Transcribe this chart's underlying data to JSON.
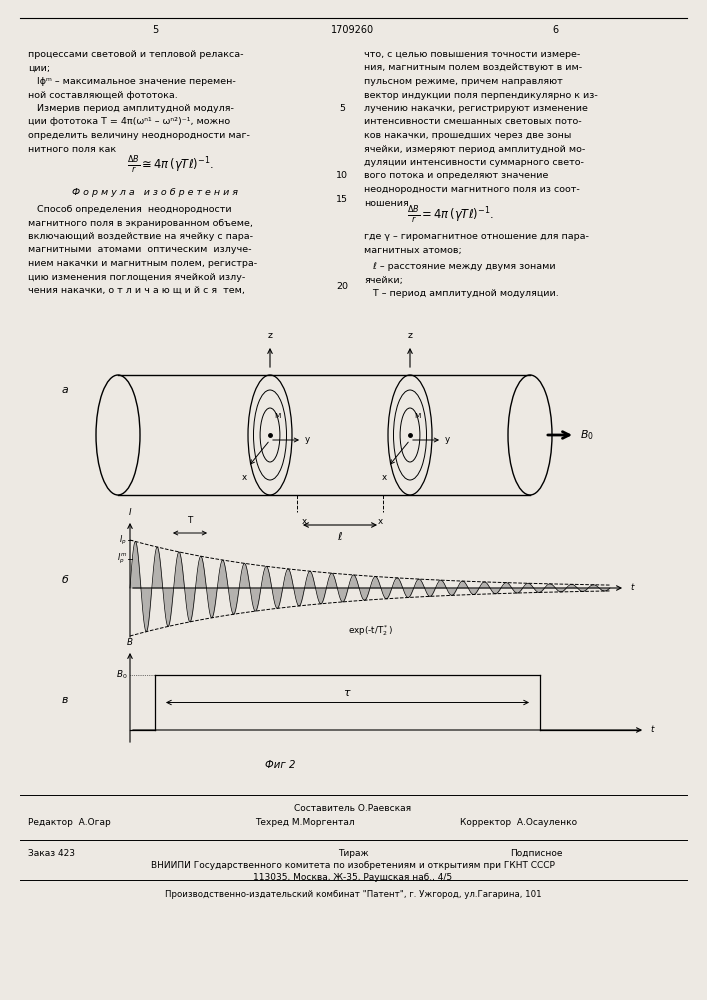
{
  "bg_color": "#ede9e3",
  "page_width": 7.07,
  "page_height": 10.0,
  "header_num_left": "5",
  "header_title": "1709260",
  "header_num_right": "6",
  "left_col_lines": [
    "процессами световой и тепловой релакса-",
    "ции;",
    "   Iϕᵐ – максимальное значение перемен-",
    "ной составляющей фототока.",
    "   Измерив период амплитудной модуля-",
    "ции фототока T = 4π(ωⁿ¹ – ωⁿ²)⁻¹, можно",
    "определить величину неоднородности маг-",
    "нитного поля как"
  ],
  "right_col_lines": [
    "что, с целью повышения точности измере-",
    "ния, магнитным полем воздействуют в им-",
    "пульсном режиме, причем направляют",
    "вектор индукции поля перпендикулярно к из-",
    "лучению накачки, регистрируют изменение",
    "интенсивности смешанных световых пото-",
    "ков накачки, прошедших через две зоны",
    "ячейки, измеряют период амплитудной мо-",
    "дуляции интенсивности суммарного свето-",
    "вого потока и определяют значение",
    "неоднородности магнитного поля из соот-",
    "ношения"
  ],
  "claim_lines": [
    "   Способ определения  неоднородности",
    "магнитного поля в экранированном объеме,",
    "включающий воздействие на ячейку с пара-",
    "магнитными  атомами  оптическим  излуче-",
    "нием накачки и магнитным полем, регистра-",
    "цию изменения поглощения ячейкой излу-",
    "чения накачки, о т л и ч а ю щ и й с я  тем,"
  ],
  "def_lines": [
    "где γ – гиромагнитное отношение для пара-",
    "магнитных атомов;",
    "   ℓ – расстояние между двумя зонами",
    "ячейки;",
    "   T – период амплитудной модуляции."
  ],
  "section_title": "Ф о р м у л а   и з о б р е т е н и я",
  "fig_caption": "Фиг 2",
  "editor": "Редактор  А.Огар",
  "composer": "Составитель О.Раевская",
  "techred": "Техред М.Моргентал",
  "corrector": "Корректор  А.Осауленко",
  "order": "Заказ 423",
  "tirazh": "Тираж",
  "podpisnoe": "Подписное",
  "vniipli": "ВНИИПИ Государственного комитета по изобретениям и открытиям при ГКНТ СССР",
  "address": "113035, Москва, Ж-35, Раушская наб., 4/5",
  "publisher": "Производственно-издательский комбинат \"Патент\", г. Ужгород, ул.Гагарина, 101"
}
